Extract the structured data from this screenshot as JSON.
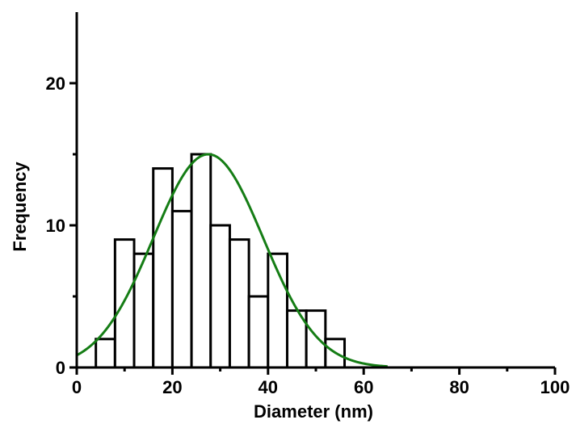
{
  "chart_data": {
    "type": "bar",
    "subtype": "histogram",
    "xlabel": "Diameter (nm)",
    "ylabel": "Frequency",
    "xlim": [
      0,
      100
    ],
    "ylim": [
      0,
      25
    ],
    "x_ticks": [
      0,
      20,
      40,
      60,
      80,
      100
    ],
    "y_ticks": [
      0,
      10,
      20
    ],
    "x_minor_ticks": [
      10,
      30,
      50,
      70,
      90
    ],
    "y_minor_ticks": [
      5,
      15
    ],
    "bins": [
      {
        "start": 4,
        "end": 8,
        "value": 2
      },
      {
        "start": 8,
        "end": 12,
        "value": 9
      },
      {
        "start": 12,
        "end": 16,
        "value": 8
      },
      {
        "start": 16,
        "end": 20,
        "value": 14
      },
      {
        "start": 20,
        "end": 24,
        "value": 11
      },
      {
        "start": 24,
        "end": 28,
        "value": 15
      },
      {
        "start": 28,
        "end": 32,
        "value": 10
      },
      {
        "start": 32,
        "end": 36,
        "value": 9
      },
      {
        "start": 36,
        "end": 40,
        "value": 5
      },
      {
        "start": 40,
        "end": 44,
        "value": 8
      },
      {
        "start": 44,
        "end": 48,
        "value": 4
      },
      {
        "start": 48,
        "end": 52,
        "value": 4
      },
      {
        "start": 52,
        "end": 56,
        "value": 2
      }
    ],
    "fit_curve": {
      "type": "gaussian",
      "peak_x": 27.5,
      "peak_y": 15,
      "sigma": 11.5,
      "x_range": [
        0,
        65
      ]
    },
    "bar_fill": "#ffffff",
    "bar_stroke": "#000000",
    "curve_color": "#157d15",
    "grid": false
  }
}
